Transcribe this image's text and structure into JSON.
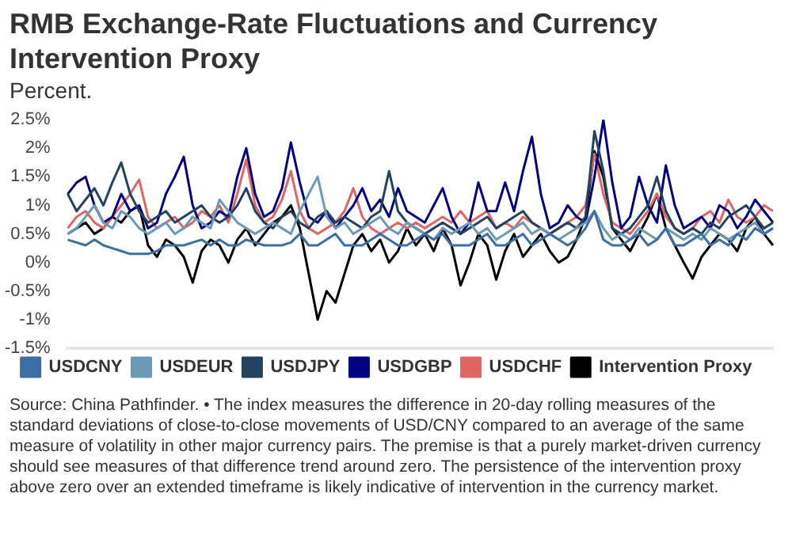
{
  "chart_data": {
    "type": "line",
    "title": "RMB Exchange-Rate Fluctuations and Currency Intervention Proxy",
    "subtitle": "Percent.",
    "annotations": [
      "Source: China Pathfinder. • The index measures the difference in 20-day rolling measures of the standard deviations of close-to-close movements of USD/CNY compared to an average of the same measure of volatility in other major currency pairs. The premise is that a purely market-driven currency should see measures of that difference trend around zero. The persistence of the intervention proxy above zero over an extended timeframe is likely indicative of intervention in the currency market."
    ],
    "categories": [
      null,
      null,
      null,
      null,
      null,
      null,
      null,
      null,
      null,
      null,
      null,
      null,
      null,
      null,
      null,
      null,
      null,
      null,
      null,
      null,
      null,
      null,
      null,
      null,
      null,
      null,
      null,
      null,
      null,
      null,
      null,
      null,
      null,
      null,
      null,
      null,
      null,
      null,
      null,
      null,
      null,
      null,
      null,
      null,
      null,
      null,
      null,
      null,
      null,
      null,
      null,
      null,
      null,
      null,
      null,
      null,
      null,
      null,
      null,
      null,
      null,
      null,
      null,
      null,
      null,
      null,
      null,
      null,
      null,
      null,
      null,
      null,
      null,
      null,
      null,
      null,
      null,
      null,
      null,
      null
    ],
    "series": [
      {
        "name": "USDCNY",
        "color": "#3a6ea5",
        "values": [
          0.4,
          0.35,
          0.3,
          0.4,
          0.3,
          0.25,
          0.2,
          0.15,
          0.15,
          0.15,
          0.2,
          0.3,
          0.3,
          0.3,
          0.35,
          0.4,
          0.3,
          0.4,
          0.3,
          0.3,
          0.4,
          0.35,
          0.3,
          0.3,
          0.3,
          0.35,
          0.5,
          0.3,
          0.3,
          0.4,
          0.5,
          0.3,
          0.3,
          0.3,
          0.4,
          0.5,
          0.4,
          0.3,
          0.3,
          0.4,
          0.5,
          0.4,
          0.5,
          0.3,
          0.3,
          0.3,
          0.4,
          0.5,
          0.3,
          0.3,
          0.4,
          0.5,
          0.3,
          0.4,
          0.5,
          0.4,
          0.3,
          0.4,
          0.6,
          0.9,
          0.4,
          0.3,
          0.3,
          0.4,
          0.5,
          0.3,
          0.4,
          0.6,
          0.3,
          0.3,
          0.4,
          0.5,
          0.3,
          0.4,
          0.3,
          0.5,
          0.4,
          0.6,
          0.5,
          0.6
        ]
      },
      {
        "name": "USDEUR",
        "color": "#6a9ab5",
        "values": [
          0.5,
          0.6,
          0.8,
          1.0,
          0.7,
          0.6,
          0.9,
          0.8,
          0.6,
          0.5,
          0.6,
          0.7,
          0.5,
          0.6,
          0.8,
          0.7,
          0.6,
          1.1,
          0.9,
          0.7,
          0.6,
          0.5,
          0.6,
          0.7,
          0.6,
          0.5,
          0.9,
          1.2,
          1.5,
          0.8,
          0.6,
          0.7,
          0.5,
          0.6,
          0.7,
          0.8,
          0.6,
          0.5,
          0.7,
          0.6,
          0.5,
          0.4,
          0.6,
          0.5,
          0.6,
          0.7,
          0.5,
          0.6,
          0.4,
          0.5,
          0.6,
          0.7,
          0.5,
          0.6,
          0.5,
          0.4,
          0.5,
          0.6,
          0.7,
          0.9,
          0.6,
          0.4,
          0.5,
          0.4,
          0.6,
          0.5,
          0.4,
          0.6,
          0.5,
          0.4,
          0.5,
          0.4,
          0.6,
          0.5,
          0.4,
          0.5,
          0.6,
          0.7,
          0.5,
          0.6
        ]
      },
      {
        "name": "USDJPY",
        "color": "#22435f",
        "values": [
          1.2,
          0.9,
          1.1,
          1.3,
          1.0,
          1.4,
          1.75,
          1.2,
          0.9,
          0.7,
          0.8,
          0.9,
          0.7,
          0.8,
          0.9,
          1.0,
          0.8,
          0.7,
          0.8,
          1.0,
          1.3,
          0.9,
          0.7,
          0.6,
          0.8,
          0.9,
          0.7,
          0.6,
          0.8,
          0.9,
          0.7,
          0.8,
          0.7,
          0.6,
          0.8,
          0.9,
          1.6,
          0.9,
          0.7,
          0.6,
          0.5,
          0.6,
          0.7,
          0.6,
          0.5,
          0.6,
          0.7,
          0.8,
          0.6,
          0.7,
          0.8,
          0.9,
          0.7,
          0.6,
          0.5,
          0.6,
          0.7,
          0.6,
          0.8,
          2.3,
          1.6,
          0.6,
          0.5,
          0.6,
          0.8,
          1.0,
          1.5,
          0.9,
          0.6,
          0.5,
          0.6,
          0.5,
          0.7,
          0.6,
          0.8,
          0.9,
          1.0,
          0.8,
          0.6,
          0.7
        ]
      },
      {
        "name": "USDGBP",
        "color": "#000080",
        "values": [
          1.2,
          1.4,
          1.5,
          1.0,
          0.7,
          0.8,
          1.2,
          0.9,
          1.0,
          0.6,
          0.7,
          1.2,
          1.5,
          1.85,
          1.0,
          0.6,
          0.7,
          0.9,
          0.8,
          1.5,
          2.0,
          1.2,
          0.8,
          0.9,
          1.3,
          2.1,
          1.4,
          0.8,
          0.7,
          0.9,
          0.6,
          0.8,
          1.0,
          1.3,
          0.9,
          1.1,
          0.8,
          1.3,
          0.9,
          0.8,
          0.7,
          1.0,
          1.3,
          0.8,
          0.5,
          0.7,
          1.4,
          0.9,
          0.9,
          1.4,
          0.9,
          1.6,
          2.2,
          1.2,
          0.6,
          0.7,
          1.0,
          0.8,
          0.7,
          1.5,
          2.5,
          1.4,
          0.6,
          0.8,
          1.5,
          1.0,
          0.7,
          1.7,
          1.0,
          0.6,
          0.7,
          0.8,
          0.6,
          1.0,
          0.9,
          0.6,
          0.8,
          1.1,
          0.9,
          0.7
        ]
      },
      {
        "name": "USDCHF",
        "color": "#e06666",
        "values": [
          0.6,
          0.8,
          0.9,
          0.7,
          0.6,
          0.8,
          1.0,
          1.2,
          1.45,
          0.8,
          0.6,
          0.7,
          0.8,
          0.6,
          0.7,
          0.9,
          0.8,
          1.0,
          0.7,
          1.2,
          1.8,
          1.0,
          0.7,
          0.8,
          1.1,
          1.6,
          0.9,
          0.6,
          0.5,
          0.6,
          0.7,
          0.9,
          1.3,
          0.8,
          0.6,
          0.5,
          0.6,
          0.7,
          0.6,
          0.7,
          0.6,
          0.7,
          0.8,
          0.7,
          0.9,
          0.7,
          0.8,
          0.9,
          0.6,
          0.7,
          0.6,
          0.8,
          0.7,
          0.6,
          0.5,
          0.6,
          0.7,
          0.8,
          1.0,
          1.9,
          1.2,
          0.7,
          0.6,
          0.5,
          0.7,
          0.9,
          1.2,
          0.8,
          0.6,
          0.5,
          0.6,
          0.8,
          0.9,
          0.7,
          1.1,
          0.8,
          0.7,
          0.8,
          1.0,
          0.9
        ]
      },
      {
        "name": "Intervention Proxy",
        "color": "#000000",
        "values": [
          0.5,
          0.6,
          0.7,
          0.5,
          0.6,
          0.8,
          0.7,
          0.9,
          1.0,
          0.3,
          0.1,
          0.4,
          0.3,
          0.1,
          -0.35,
          0.2,
          0.4,
          0.3,
          0.0,
          0.4,
          0.6,
          0.3,
          0.5,
          0.7,
          0.8,
          1.0,
          0.6,
          -0.2,
          -1.0,
          -0.5,
          -0.7,
          -0.2,
          0.3,
          0.5,
          0.2,
          0.4,
          0.0,
          0.2,
          0.6,
          0.3,
          0.5,
          0.2,
          0.6,
          0.3,
          -0.4,
          0.0,
          0.5,
          0.3,
          -0.3,
          0.2,
          0.5,
          0.1,
          0.3,
          0.5,
          0.2,
          0.0,
          0.1,
          0.4,
          0.8,
          1.95,
          1.5,
          0.6,
          0.4,
          0.2,
          0.5,
          0.8,
          1.2,
          0.6,
          0.3,
          0.0,
          -0.28,
          0.1,
          0.3,
          0.5,
          0.4,
          0.2,
          0.6,
          0.8,
          0.5,
          0.3
        ]
      }
    ],
    "ylim": [
      -1.5,
      2.5
    ],
    "yticks": [
      {
        "value": -1.5,
        "label": "-1.5%"
      },
      {
        "value": -1,
        "label": "-1%"
      },
      {
        "value": -0.5,
        "label": "-0.5%"
      },
      {
        "value": 0,
        "label": "0%"
      },
      {
        "value": 0.5,
        "label": "0.5%"
      },
      {
        "value": 1,
        "label": "1%"
      },
      {
        "value": 1.5,
        "label": "1.5%"
      },
      {
        "value": 2,
        "label": "2%"
      },
      {
        "value": 2.5,
        "label": "2.5%"
      }
    ],
    "grid": false,
    "legend": "bottom",
    "tick_labels": "y",
    "line_style": "solid"
  }
}
